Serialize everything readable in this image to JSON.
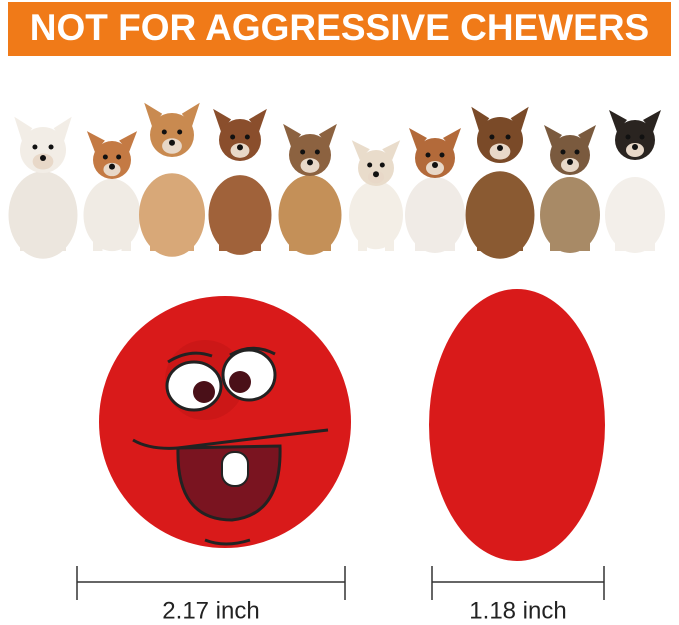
{
  "banner": "NOT FOR AGGRESSIVE CHEWERS",
  "dimensions": [
    {
      "label": "2.17 inch"
    },
    {
      "label": "1.18 inch"
    }
  ]
}
